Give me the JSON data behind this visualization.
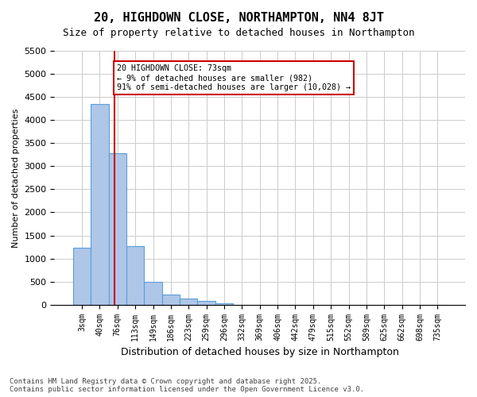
{
  "title": "20, HIGHDOWN CLOSE, NORTHAMPTON, NN4 8JT",
  "subtitle": "Size of property relative to detached houses in Northampton",
  "xlabel": "Distribution of detached houses by size in Northampton",
  "ylabel": "Number of detached properties",
  "bin_labels": [
    "3sqm",
    "40sqm",
    "76sqm",
    "113sqm",
    "149sqm",
    "186sqm",
    "223sqm",
    "259sqm",
    "296sqm",
    "332sqm",
    "369sqm",
    "406sqm",
    "442sqm",
    "479sqm",
    "515sqm",
    "552sqm",
    "589sqm",
    "625sqm",
    "662sqm",
    "698sqm",
    "735sqm"
  ],
  "bar_heights": [
    1230,
    4350,
    3280,
    1260,
    500,
    220,
    130,
    80,
    30,
    0,
    0,
    0,
    0,
    0,
    0,
    0,
    0,
    0,
    0,
    0,
    0
  ],
  "bar_color": "#aec6e8",
  "bar_edge_color": "#5a9fd4",
  "property_line_x": 1.83,
  "property_line_color": "#cc0000",
  "annotation_line1": "20 HIGHDOWN CLOSE: 73sqm",
  "annotation_line2": "← 9% of detached houses are smaller (982)",
  "annotation_line3": "91% of semi-detached houses are larger (10,028) →",
  "annotation_box_color": "#cc0000",
  "ylim": [
    0,
    5500
  ],
  "yticks": [
    0,
    500,
    1000,
    1500,
    2000,
    2500,
    3000,
    3500,
    4000,
    4500,
    5000,
    5500
  ],
  "footer_line1": "Contains HM Land Registry data © Crown copyright and database right 2025.",
  "footer_line2": "Contains public sector information licensed under the Open Government Licence v3.0.",
  "background_color": "#ffffff",
  "grid_color": "#cccccc"
}
